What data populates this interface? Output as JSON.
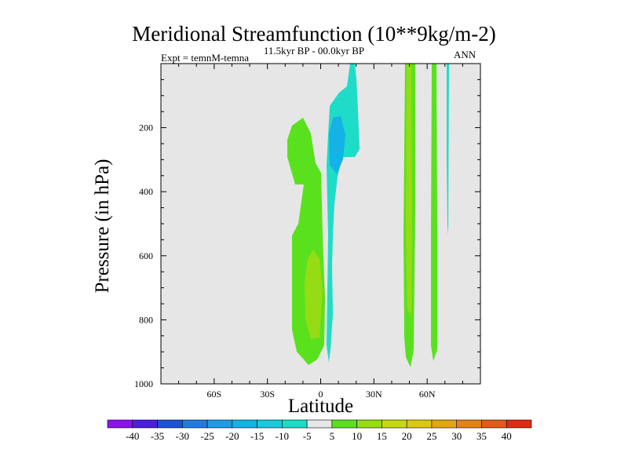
{
  "title": "Meridional Streamfunction (10**9kg/m-2)",
  "subtitle": "11.5kyr BP - 00.0kyr BP",
  "experiment": "Expt = temnM-temna",
  "season": "ANN",
  "colors": {
    "background_field": "#e6e6e6",
    "missing": "#e6e6e6"
  },
  "chart_data": {
    "type": "contour",
    "title": "Meridional Streamfunction (10**9kg/m-2)",
    "xlabel": "Latitude",
    "ylabel": "Pressure (in hPa)",
    "xlim": [
      -90,
      90
    ],
    "ylim": [
      1000,
      0
    ],
    "xticks": [
      {
        "value": -60,
        "label": "60S"
      },
      {
        "value": -30,
        "label": "30S"
      },
      {
        "value": 0,
        "label": "0"
      },
      {
        "value": 30,
        "label": "30N"
      },
      {
        "value": 60,
        "label": "60N"
      }
    ],
    "yticks": [
      {
        "value": 200,
        "label": "200"
      },
      {
        "value": 400,
        "label": "400"
      },
      {
        "value": 600,
        "label": "600"
      },
      {
        "value": 800,
        "label": "800"
      },
      {
        "value": 1000,
        "label": "1000"
      }
    ],
    "colorbar": {
      "labels": [
        "-40",
        "-35",
        "-30",
        "-25",
        "-20",
        "-15",
        "-10",
        "-5",
        "5",
        "10",
        "15",
        "20",
        "25",
        "30",
        "35",
        "40"
      ],
      "colors": [
        "#8c14e6",
        "#4b1fd8",
        "#1f50d8",
        "#1e7ce0",
        "#1e9be8",
        "#14b2e6",
        "#1ec8dc",
        "#1edcc8",
        "#e6e6e6",
        "#5ae11e",
        "#96dc14",
        "#c8d714",
        "#dcc814",
        "#e6a514",
        "#e68214",
        "#e65a14",
        "#dc2d14"
      ]
    },
    "regions": [
      {
        "name": "green positive band south of equator",
        "level": 5,
        "lat": [
          -18,
          0
        ],
        "p": [
          170,
          945
        ]
      },
      {
        "name": "inner maximum south of equator",
        "level": 10,
        "lat": [
          -8,
          0
        ],
        "p": [
          580,
          850
        ]
      },
      {
        "name": "cyan negative band near equator",
        "level": -5,
        "lat": [
          5,
          20
        ],
        "p": [
          0,
          935
        ]
      },
      {
        "name": "negative core aloft",
        "level": -10,
        "lat": [
          5,
          10
        ],
        "p": [
          160,
          310
        ]
      },
      {
        "name": "narrow positive column near 50N",
        "level": 10,
        "lat": [
          49,
          53
        ],
        "p": [
          0,
          945
        ]
      },
      {
        "name": "narrow positive column near 63N",
        "level": 5,
        "lat": [
          62,
          65
        ],
        "p": [
          0,
          925
        ]
      },
      {
        "name": "thin negative sliver near 72N",
        "level": -5,
        "lat": [
          71.5,
          72
        ],
        "p": [
          0,
          500
        ]
      }
    ]
  }
}
